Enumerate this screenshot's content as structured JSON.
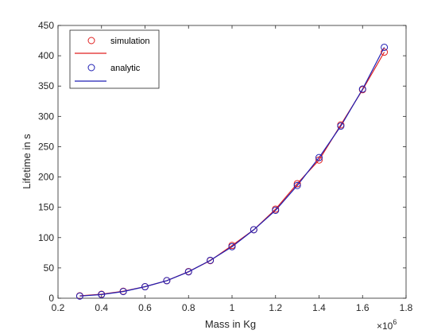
{
  "chart_data": {
    "type": "line",
    "xlabel": "Mass in Kg",
    "ylabel": "Lifetime in s",
    "x_exponent_base": "×10",
    "x_exponent_power": "6",
    "xlim": [
      0.2,
      1.8
    ],
    "ylim": [
      0,
      450
    ],
    "x_ticks": [
      0.2,
      0.4,
      0.6,
      0.8,
      1,
      1.2,
      1.4,
      1.6,
      1.8
    ],
    "x_tick_labels": [
      "0.2",
      "0.4",
      "0.6",
      "0.8",
      "1",
      "1.2",
      "1.4",
      "1.6",
      "1.8"
    ],
    "y_ticks": [
      0,
      50,
      100,
      150,
      200,
      250,
      300,
      350,
      400,
      450
    ],
    "y_tick_labels": [
      "0",
      "50",
      "100",
      "150",
      "200",
      "250",
      "300",
      "350",
      "400",
      "450"
    ],
    "grid": false,
    "legend_position": "top-left",
    "x": [
      0.3,
      0.4,
      0.5,
      0.6,
      0.7,
      0.8,
      0.9,
      1.0,
      1.1,
      1.2,
      1.3,
      1.4,
      1.5,
      1.6,
      1.7
    ],
    "series": [
      {
        "name": "simulation",
        "color": "#e02020",
        "marker": "circle",
        "values": [
          4,
          6.5,
          11.5,
          19,
          29,
          44,
          62,
          87,
          113,
          147,
          189,
          228,
          286,
          344,
          406
        ]
      },
      {
        "name": "analytic",
        "color": "#1f1fb4",
        "marker": "circle",
        "values": [
          3.5,
          6,
          11,
          19,
          29,
          43.5,
          62.5,
          85,
          113,
          145,
          186,
          232,
          284,
          345,
          414
        ]
      }
    ]
  }
}
